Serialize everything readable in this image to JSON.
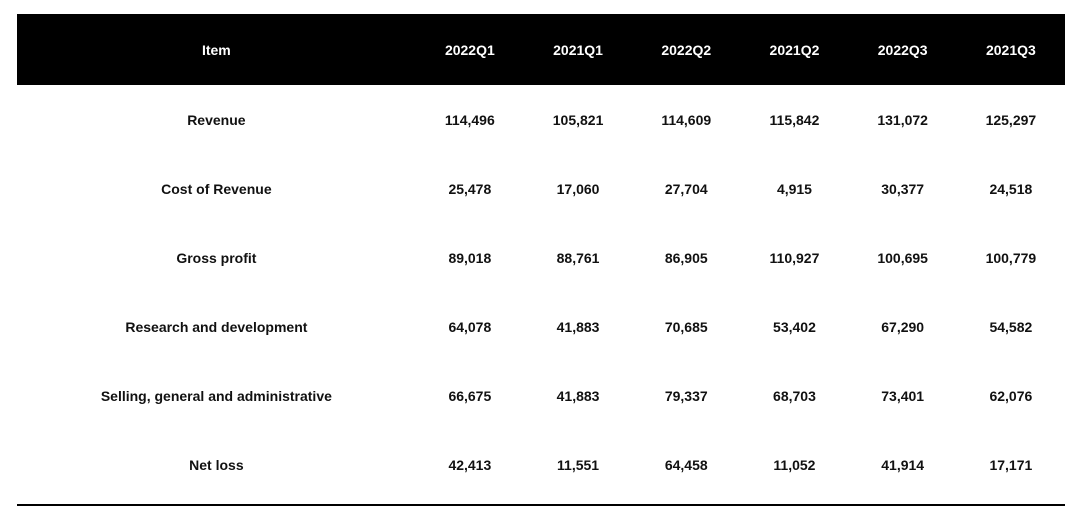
{
  "table": {
    "columns": [
      "Item",
      "2022Q1",
      "2021Q1",
      "2022Q2",
      "2021Q2",
      "2022Q3",
      "2021Q3"
    ],
    "rows": [
      [
        "Revenue",
        "114,496",
        "105,821",
        "114,609",
        "115,842",
        "131,072",
        "125,297"
      ],
      [
        "Cost of Revenue",
        "25,478",
        "17,060",
        "27,704",
        "4,915",
        "30,377",
        "24,518"
      ],
      [
        "Gross profit",
        "89,018",
        "88,761",
        "86,905",
        "110,927",
        "100,695",
        "100,779"
      ],
      [
        "Research and development",
        "64,078",
        "41,883",
        "70,685",
        "53,402",
        "67,290",
        "54,582"
      ],
      [
        "Selling, general and administrative",
        "66,675",
        "41,883",
        "79,337",
        "68,703",
        "73,401",
        "62,076"
      ],
      [
        "Net loss",
        "42,413",
        "11,551",
        "64,458",
        "11,052",
        "41,914",
        "17,171"
      ]
    ]
  },
  "colors": {
    "header_background": "#000000",
    "header_text": "#ffffff",
    "body_text": "#111111",
    "rule": "#000000"
  }
}
